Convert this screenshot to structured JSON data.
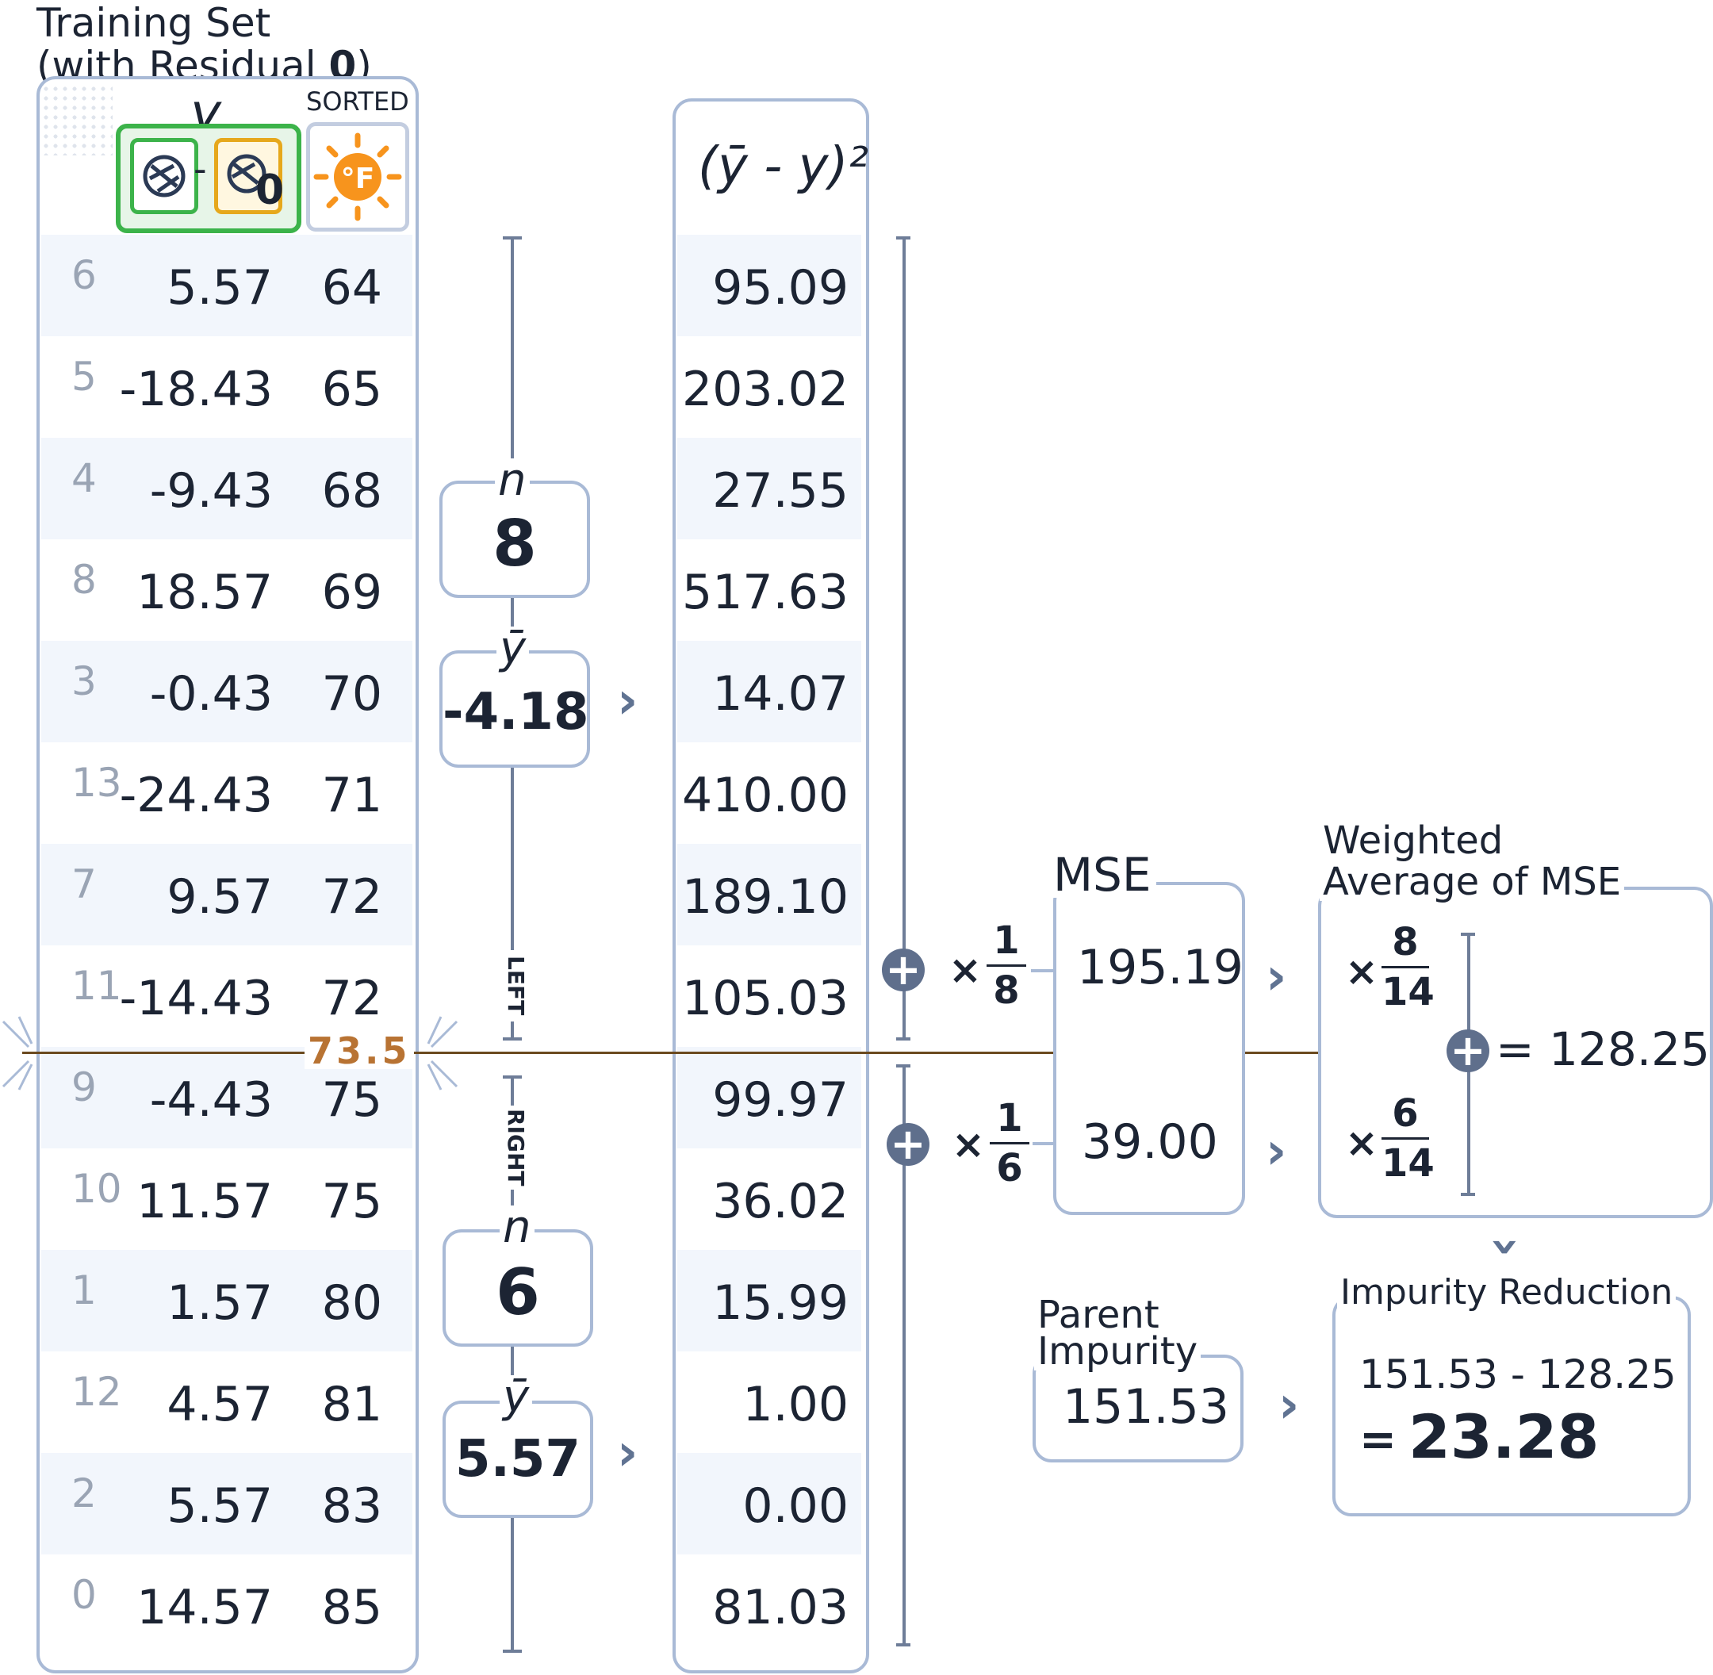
{
  "title": {
    "line1": "Training Set",
    "line2_prefix": "(with Residual ",
    "line2_bold": "0",
    "line2_suffix": ")"
  },
  "header": {
    "y_label": "y",
    "minus": "-",
    "zero_label": "0",
    "sorted_label": "SORTED",
    "sq_label": "(ȳ - y)²"
  },
  "rows": [
    {
      "idx": "6",
      "resid": "5.57",
      "temp": "64",
      "sq": "95.09"
    },
    {
      "idx": "5",
      "resid": "-18.43",
      "temp": "65",
      "sq": "203.02"
    },
    {
      "idx": "4",
      "resid": "-9.43",
      "temp": "68",
      "sq": "27.55"
    },
    {
      "idx": "8",
      "resid": "18.57",
      "temp": "69",
      "sq": "517.63"
    },
    {
      "idx": "3",
      "resid": "-0.43",
      "temp": "70",
      "sq": "14.07"
    },
    {
      "idx": "13",
      "resid": "-24.43",
      "temp": "71",
      "sq": "410.00"
    },
    {
      "idx": "7",
      "resid": "9.57",
      "temp": "72",
      "sq": "189.10"
    },
    {
      "idx": "11",
      "resid": "-14.43",
      "temp": "72",
      "sq": "105.03"
    },
    {
      "idx": "9",
      "resid": "-4.43",
      "temp": "75",
      "sq": "99.97"
    },
    {
      "idx": "10",
      "resid": "11.57",
      "temp": "75",
      "sq": "36.02"
    },
    {
      "idx": "1",
      "resid": "1.57",
      "temp": "80",
      "sq": "15.99"
    },
    {
      "idx": "12",
      "resid": "4.57",
      "temp": "81",
      "sq": "1.00"
    },
    {
      "idx": "2",
      "resid": "5.57",
      "temp": "83",
      "sq": "0.00"
    },
    {
      "idx": "0",
      "resid": "14.57",
      "temp": "85",
      "sq": "81.03"
    }
  ],
  "split": {
    "threshold": "73.5",
    "left_label": "LEFT",
    "right_label": "RIGHT"
  },
  "left": {
    "n_label": "n",
    "n": "8",
    "ybar_label": "ȳ",
    "ybar": "-4.18",
    "frac_num": "1",
    "frac_den": "8",
    "times": "×",
    "mse": "195.19",
    "w_num": "8",
    "w_den": "14"
  },
  "right": {
    "n_label": "n",
    "n": "6",
    "ybar_label": "ȳ",
    "ybar": "5.57",
    "frac_num": "1",
    "frac_den": "6",
    "times": "×",
    "mse": "39.00",
    "w_num": "6",
    "w_den": "14"
  },
  "mse_label": "MSE",
  "weighted": {
    "line1": "Weighted",
    "line2": "Average of MSE",
    "result": "= 128.25"
  },
  "parent": {
    "line1": "Parent",
    "line2": "Impurity",
    "value": "151.53"
  },
  "reduction": {
    "label": "Impurity Reduction",
    "expr": "151.53 - 128.25",
    "eq": "=",
    "result": "23.28"
  },
  "colors": {
    "border": "#a9bad6",
    "row_alt": "#f2f6fc",
    "split_line": "#6b4a1f",
    "threshold": "#b87333",
    "icon_green": "#3cb34a",
    "icon_yellow": "#e6a81c",
    "icon_orange": "#f7941d",
    "plus": "#5f6f8c"
  }
}
